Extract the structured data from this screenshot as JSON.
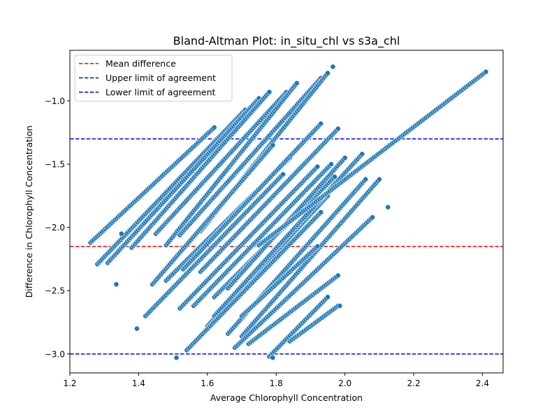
{
  "chart_data": {
    "type": "scatter",
    "title": "Bland-Altman Plot: in_situ_chl vs s3a_chl",
    "xlabel": "Average Chlorophyll Concentration",
    "ylabel": "Difference in Chlorophyll Concentration",
    "xlim": [
      1.2,
      2.46
    ],
    "ylim": [
      -3.15,
      -0.6
    ],
    "x_ticks": [
      {
        "value": 1.2,
        "label": "1.2"
      },
      {
        "value": 1.4,
        "label": "1.4"
      },
      {
        "value": 1.6,
        "label": "1.6"
      },
      {
        "value": 1.8,
        "label": "1.8"
      },
      {
        "value": 2.0,
        "label": "2.0"
      },
      {
        "value": 2.2,
        "label": "2.2"
      },
      {
        "value": 2.4,
        "label": "2.4"
      }
    ],
    "y_ticks": [
      {
        "value": -1.0,
        "label": "−1.0"
      },
      {
        "value": -1.5,
        "label": "−1.5"
      },
      {
        "value": -2.0,
        "label": "−2.0"
      },
      {
        "value": -2.5,
        "label": "−2.5"
      },
      {
        "value": -3.0,
        "label": "−3.0"
      }
    ],
    "grid": false,
    "legend_position": "top-left",
    "point_color": "#1f77b4",
    "point_edge_color": "#ffffff",
    "reference_lines": [
      {
        "name": "Mean difference",
        "y": -2.15,
        "color": "#ff0000"
      },
      {
        "name": "Upper limit of agreement",
        "y": -1.3,
        "color": "#0000ff"
      },
      {
        "name": "Lower limit of agreement",
        "y": -3.0,
        "color": "#0000ff"
      }
    ],
    "point_bands": [
      {
        "x_start": 1.26,
        "y_start": -2.12,
        "x_end": 1.62,
        "y_end": -1.21
      },
      {
        "x_start": 1.28,
        "y_start": -2.29,
        "x_end": 1.71,
        "y_end": -1.07
      },
      {
        "x_start": 1.31,
        "y_start": -2.28,
        "x_end": 1.75,
        "y_end": -0.98
      },
      {
        "x_start": 1.38,
        "y_start": -2.16,
        "x_end": 1.78,
        "y_end": -0.93
      },
      {
        "x_start": 1.45,
        "y_start": -2.05,
        "x_end": 1.83,
        "y_end": -0.93
      },
      {
        "x_start": 1.48,
        "y_start": -2.14,
        "x_end": 1.86,
        "y_end": -0.86
      },
      {
        "x_start": 1.52,
        "y_start": -2.06,
        "x_end": 1.93,
        "y_end": -0.82
      },
      {
        "x_start": 1.58,
        "y_start": -2.03,
        "x_end": 1.95,
        "y_end": -0.78
      },
      {
        "x_start": 1.44,
        "y_start": -2.45,
        "x_end": 1.79,
        "y_end": -1.35
      },
      {
        "x_start": 1.48,
        "y_start": -2.42,
        "x_end": 1.84,
        "y_end": -1.45
      },
      {
        "x_start": 1.53,
        "y_start": -2.33,
        "x_end": 1.93,
        "y_end": -1.18
      },
      {
        "x_start": 1.58,
        "y_start": -2.35,
        "x_end": 1.98,
        "y_end": -1.22
      },
      {
        "x_start": 1.62,
        "y_start": -2.55,
        "x_end": 1.97,
        "y_end": -1.6
      },
      {
        "x_start": 1.66,
        "y_start": -2.48,
        "x_end": 2.0,
        "y_end": -1.45
      },
      {
        "x_start": 1.42,
        "y_start": -2.7,
        "x_end": 1.82,
        "y_end": -1.58
      },
      {
        "x_start": 1.52,
        "y_start": -2.64,
        "x_end": 1.92,
        "y_end": -1.52
      },
      {
        "x_start": 1.56,
        "y_start": -2.62,
        "x_end": 1.96,
        "y_end": -1.5
      },
      {
        "x_start": 1.6,
        "y_start": -2.78,
        "x_end": 1.95,
        "y_end": -1.75
      },
      {
        "x_start": 1.62,
        "y_start": -2.7,
        "x_end": 2.05,
        "y_end": -1.42
      },
      {
        "x_start": 1.66,
        "y_start": -2.84,
        "x_end": 2.06,
        "y_end": -1.62
      },
      {
        "x_start": 1.7,
        "y_start": -2.86,
        "x_end": 2.1,
        "y_end": -1.62
      },
      {
        "x_start": 1.54,
        "y_start": -2.97,
        "x_end": 1.93,
        "y_end": -1.88
      },
      {
        "x_start": 1.68,
        "y_start": -2.95,
        "x_end": 2.08,
        "y_end": -1.92
      },
      {
        "x_start": 1.72,
        "y_start": -2.92,
        "x_end": 1.98,
        "y_end": -2.38
      },
      {
        "x_start": 1.78,
        "y_start": -3.02,
        "x_end": 1.95,
        "y_end": -2.55
      },
      {
        "x_start": 1.7,
        "y_start": -2.7,
        "x_end": 1.92,
        "y_end": -2.15
      },
      {
        "x_start": 1.84,
        "y_start": -2.9,
        "x_end": 1.98,
        "y_end": -2.62
      },
      {
        "x_start": 1.75,
        "y_start": -2.14,
        "x_end": 2.41,
        "y_end": -0.77
      }
    ],
    "extra_points": [
      {
        "x": 1.335,
        "y": -2.45
      },
      {
        "x": 1.395,
        "y": -2.8
      },
      {
        "x": 1.51,
        "y": -3.03
      },
      {
        "x": 1.965,
        "y": -0.73
      },
      {
        "x": 2.125,
        "y": -1.84
      },
      {
        "x": 1.985,
        "y": -2.62
      },
      {
        "x": 1.35,
        "y": -2.05
      },
      {
        "x": 1.79,
        "y": -3.03
      }
    ]
  }
}
